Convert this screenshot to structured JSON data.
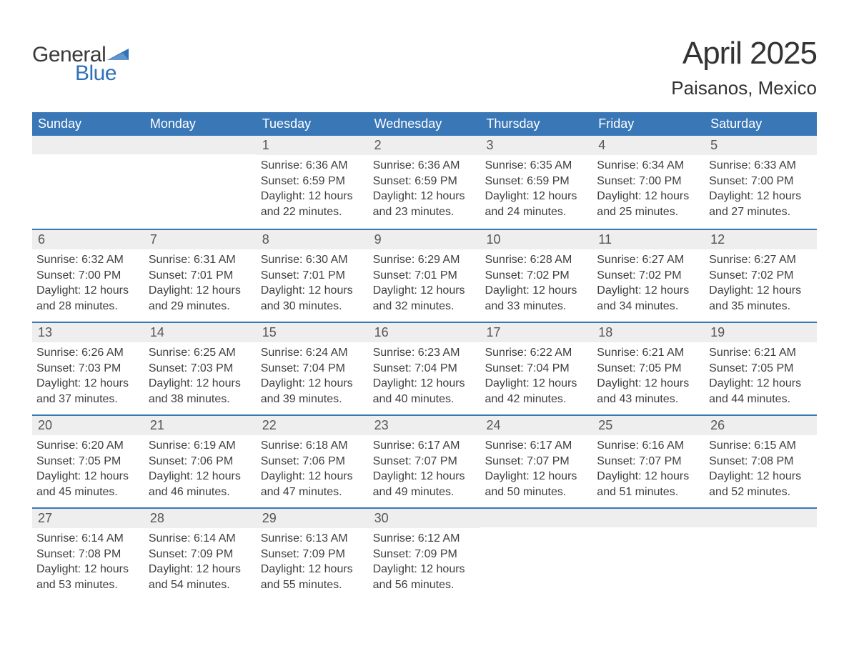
{
  "branding": {
    "logo_word1": "General",
    "logo_word2": "Blue",
    "logo_word1_color": "#3a3a3a",
    "logo_word2_color": "#2f72b8",
    "logo_triangle_color": "#2f72b8"
  },
  "title": {
    "month_year": "April 2025",
    "location": "Paisanos, Mexico"
  },
  "colors": {
    "header_bg": "#3a77b7",
    "header_text": "#ffffff",
    "week_divider": "#3a77b7",
    "daynum_band_bg": "#eeeeee",
    "daynum_text": "#555555",
    "body_text": "#3f3f3f",
    "page_bg": "#ffffff"
  },
  "typography": {
    "month_title_fontsize": 44,
    "location_fontsize": 26,
    "dayhead_fontsize": 18,
    "daynum_fontsize": 18,
    "body_fontsize": 16
  },
  "day_headers": [
    "Sunday",
    "Monday",
    "Tuesday",
    "Wednesday",
    "Thursday",
    "Friday",
    "Saturday"
  ],
  "weeks": [
    [
      {
        "day": "",
        "sunrise": "",
        "sunset": "",
        "daylight1": "",
        "daylight2": ""
      },
      {
        "day": "",
        "sunrise": "",
        "sunset": "",
        "daylight1": "",
        "daylight2": ""
      },
      {
        "day": "1",
        "sunrise": "Sunrise: 6:36 AM",
        "sunset": "Sunset: 6:59 PM",
        "daylight1": "Daylight: 12 hours",
        "daylight2": "and 22 minutes."
      },
      {
        "day": "2",
        "sunrise": "Sunrise: 6:36 AM",
        "sunset": "Sunset: 6:59 PM",
        "daylight1": "Daylight: 12 hours",
        "daylight2": "and 23 minutes."
      },
      {
        "day": "3",
        "sunrise": "Sunrise: 6:35 AM",
        "sunset": "Sunset: 6:59 PM",
        "daylight1": "Daylight: 12 hours",
        "daylight2": "and 24 minutes."
      },
      {
        "day": "4",
        "sunrise": "Sunrise: 6:34 AM",
        "sunset": "Sunset: 7:00 PM",
        "daylight1": "Daylight: 12 hours",
        "daylight2": "and 25 minutes."
      },
      {
        "day": "5",
        "sunrise": "Sunrise: 6:33 AM",
        "sunset": "Sunset: 7:00 PM",
        "daylight1": "Daylight: 12 hours",
        "daylight2": "and 27 minutes."
      }
    ],
    [
      {
        "day": "6",
        "sunrise": "Sunrise: 6:32 AM",
        "sunset": "Sunset: 7:00 PM",
        "daylight1": "Daylight: 12 hours",
        "daylight2": "and 28 minutes."
      },
      {
        "day": "7",
        "sunrise": "Sunrise: 6:31 AM",
        "sunset": "Sunset: 7:01 PM",
        "daylight1": "Daylight: 12 hours",
        "daylight2": "and 29 minutes."
      },
      {
        "day": "8",
        "sunrise": "Sunrise: 6:30 AM",
        "sunset": "Sunset: 7:01 PM",
        "daylight1": "Daylight: 12 hours",
        "daylight2": "and 30 minutes."
      },
      {
        "day": "9",
        "sunrise": "Sunrise: 6:29 AM",
        "sunset": "Sunset: 7:01 PM",
        "daylight1": "Daylight: 12 hours",
        "daylight2": "and 32 minutes."
      },
      {
        "day": "10",
        "sunrise": "Sunrise: 6:28 AM",
        "sunset": "Sunset: 7:02 PM",
        "daylight1": "Daylight: 12 hours",
        "daylight2": "and 33 minutes."
      },
      {
        "day": "11",
        "sunrise": "Sunrise: 6:27 AM",
        "sunset": "Sunset: 7:02 PM",
        "daylight1": "Daylight: 12 hours",
        "daylight2": "and 34 minutes."
      },
      {
        "day": "12",
        "sunrise": "Sunrise: 6:27 AM",
        "sunset": "Sunset: 7:02 PM",
        "daylight1": "Daylight: 12 hours",
        "daylight2": "and 35 minutes."
      }
    ],
    [
      {
        "day": "13",
        "sunrise": "Sunrise: 6:26 AM",
        "sunset": "Sunset: 7:03 PM",
        "daylight1": "Daylight: 12 hours",
        "daylight2": "and 37 minutes."
      },
      {
        "day": "14",
        "sunrise": "Sunrise: 6:25 AM",
        "sunset": "Sunset: 7:03 PM",
        "daylight1": "Daylight: 12 hours",
        "daylight2": "and 38 minutes."
      },
      {
        "day": "15",
        "sunrise": "Sunrise: 6:24 AM",
        "sunset": "Sunset: 7:04 PM",
        "daylight1": "Daylight: 12 hours",
        "daylight2": "and 39 minutes."
      },
      {
        "day": "16",
        "sunrise": "Sunrise: 6:23 AM",
        "sunset": "Sunset: 7:04 PM",
        "daylight1": "Daylight: 12 hours",
        "daylight2": "and 40 minutes."
      },
      {
        "day": "17",
        "sunrise": "Sunrise: 6:22 AM",
        "sunset": "Sunset: 7:04 PM",
        "daylight1": "Daylight: 12 hours",
        "daylight2": "and 42 minutes."
      },
      {
        "day": "18",
        "sunrise": "Sunrise: 6:21 AM",
        "sunset": "Sunset: 7:05 PM",
        "daylight1": "Daylight: 12 hours",
        "daylight2": "and 43 minutes."
      },
      {
        "day": "19",
        "sunrise": "Sunrise: 6:21 AM",
        "sunset": "Sunset: 7:05 PM",
        "daylight1": "Daylight: 12 hours",
        "daylight2": "and 44 minutes."
      }
    ],
    [
      {
        "day": "20",
        "sunrise": "Sunrise: 6:20 AM",
        "sunset": "Sunset: 7:05 PM",
        "daylight1": "Daylight: 12 hours",
        "daylight2": "and 45 minutes."
      },
      {
        "day": "21",
        "sunrise": "Sunrise: 6:19 AM",
        "sunset": "Sunset: 7:06 PM",
        "daylight1": "Daylight: 12 hours",
        "daylight2": "and 46 minutes."
      },
      {
        "day": "22",
        "sunrise": "Sunrise: 6:18 AM",
        "sunset": "Sunset: 7:06 PM",
        "daylight1": "Daylight: 12 hours",
        "daylight2": "and 47 minutes."
      },
      {
        "day": "23",
        "sunrise": "Sunrise: 6:17 AM",
        "sunset": "Sunset: 7:07 PM",
        "daylight1": "Daylight: 12 hours",
        "daylight2": "and 49 minutes."
      },
      {
        "day": "24",
        "sunrise": "Sunrise: 6:17 AM",
        "sunset": "Sunset: 7:07 PM",
        "daylight1": "Daylight: 12 hours",
        "daylight2": "and 50 minutes."
      },
      {
        "day": "25",
        "sunrise": "Sunrise: 6:16 AM",
        "sunset": "Sunset: 7:07 PM",
        "daylight1": "Daylight: 12 hours",
        "daylight2": "and 51 minutes."
      },
      {
        "day": "26",
        "sunrise": "Sunrise: 6:15 AM",
        "sunset": "Sunset: 7:08 PM",
        "daylight1": "Daylight: 12 hours",
        "daylight2": "and 52 minutes."
      }
    ],
    [
      {
        "day": "27",
        "sunrise": "Sunrise: 6:14 AM",
        "sunset": "Sunset: 7:08 PM",
        "daylight1": "Daylight: 12 hours",
        "daylight2": "and 53 minutes."
      },
      {
        "day": "28",
        "sunrise": "Sunrise: 6:14 AM",
        "sunset": "Sunset: 7:09 PM",
        "daylight1": "Daylight: 12 hours",
        "daylight2": "and 54 minutes."
      },
      {
        "day": "29",
        "sunrise": "Sunrise: 6:13 AM",
        "sunset": "Sunset: 7:09 PM",
        "daylight1": "Daylight: 12 hours",
        "daylight2": "and 55 minutes."
      },
      {
        "day": "30",
        "sunrise": "Sunrise: 6:12 AM",
        "sunset": "Sunset: 7:09 PM",
        "daylight1": "Daylight: 12 hours",
        "daylight2": "and 56 minutes."
      },
      {
        "day": "",
        "sunrise": "",
        "sunset": "",
        "daylight1": "",
        "daylight2": ""
      },
      {
        "day": "",
        "sunrise": "",
        "sunset": "",
        "daylight1": "",
        "daylight2": ""
      },
      {
        "day": "",
        "sunrise": "",
        "sunset": "",
        "daylight1": "",
        "daylight2": ""
      }
    ]
  ]
}
